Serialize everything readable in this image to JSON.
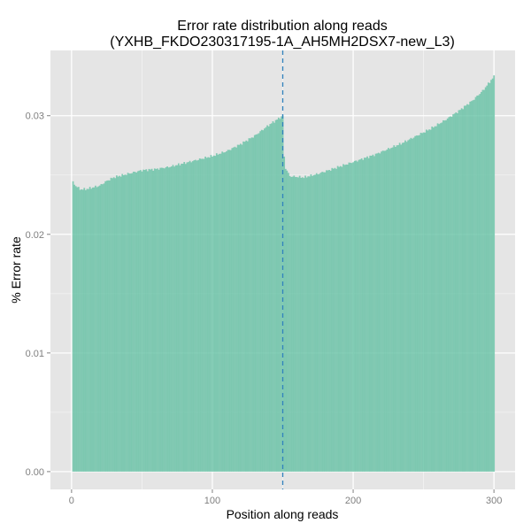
{
  "chart_data": {
    "type": "bar",
    "title_line1": "Error rate distribution along reads",
    "title_line2": "(YXHB_FKDO230317195-1A_AH5MH2DSX7-new_L3)",
    "xlabel": "Position along reads",
    "ylabel": "% Error rate",
    "xlim": [
      -15,
      315
    ],
    "ylim": [
      -0.0015,
      0.0355
    ],
    "x_ticks": [
      {
        "value": 0,
        "label": "0"
      },
      {
        "value": 100,
        "label": "100"
      },
      {
        "value": 200,
        "label": "200"
      },
      {
        "value": 300,
        "label": "300"
      }
    ],
    "y_ticks": [
      {
        "value": 0.0,
        "label": "0.00"
      },
      {
        "value": 0.01,
        "label": "0.01"
      },
      {
        "value": 0.02,
        "label": "0.02"
      },
      {
        "value": 0.03,
        "label": "0.03"
      }
    ],
    "divider_x": 150,
    "grid": true,
    "bar_color": "#66c2a5",
    "bar_opacity": 0.8,
    "panel_color": "#e5e5e5",
    "grid_major_color": "#ffffff",
    "divider_color": "#3182bd",
    "read1": {
      "x_start": 1,
      "x_end": 150,
      "anchors": [
        [
          1,
          0.0244
        ],
        [
          2,
          0.0242
        ],
        [
          4,
          0.024
        ],
        [
          6,
          0.0238
        ],
        [
          10,
          0.0238
        ],
        [
          20,
          0.0241
        ],
        [
          25,
          0.0245
        ],
        [
          30,
          0.0248
        ],
        [
          40,
          0.0251
        ],
        [
          50,
          0.0254
        ],
        [
          60,
          0.0255
        ],
        [
          70,
          0.0257
        ],
        [
          80,
          0.026
        ],
        [
          90,
          0.0263
        ],
        [
          100,
          0.0266
        ],
        [
          110,
          0.027
        ],
        [
          120,
          0.0276
        ],
        [
          130,
          0.0283
        ],
        [
          140,
          0.0292
        ],
        [
          150,
          0.03
        ]
      ]
    },
    "read2": {
      "x_start": 151,
      "x_end": 300,
      "anchors": [
        [
          151,
          0.0265
        ],
        [
          152,
          0.0256
        ],
        [
          155,
          0.0249
        ],
        [
          165,
          0.0248
        ],
        [
          175,
          0.0251
        ],
        [
          185,
          0.0255
        ],
        [
          195,
          0.0259
        ],
        [
          205,
          0.0263
        ],
        [
          215,
          0.0267
        ],
        [
          225,
          0.0272
        ],
        [
          235,
          0.0277
        ],
        [
          245,
          0.0283
        ],
        [
          255,
          0.0289
        ],
        [
          265,
          0.0296
        ],
        [
          275,
          0.0304
        ],
        [
          285,
          0.0313
        ],
        [
          292,
          0.0321
        ],
        [
          296,
          0.0327
        ],
        [
          300,
          0.0333
        ]
      ]
    }
  }
}
